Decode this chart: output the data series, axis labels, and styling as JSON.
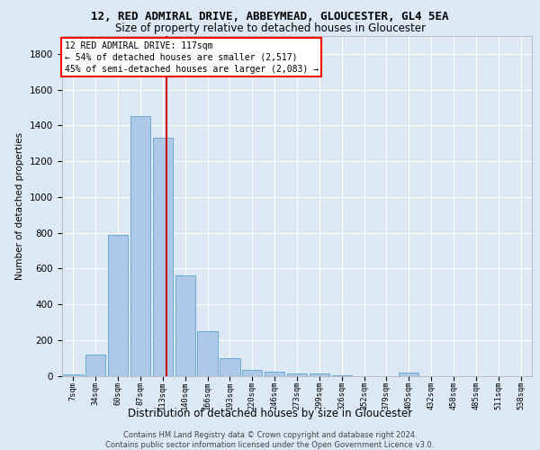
{
  "title1": "12, RED ADMIRAL DRIVE, ABBEYMEAD, GLOUCESTER, GL4 5EA",
  "title2": "Size of property relative to detached houses in Gloucester",
  "xlabel": "Distribution of detached houses by size in Gloucester",
  "ylabel": "Number of detached properties",
  "categories": [
    "7sqm",
    "34sqm",
    "60sqm",
    "87sqm",
    "113sqm",
    "140sqm",
    "166sqm",
    "193sqm",
    "220sqm",
    "246sqm",
    "273sqm",
    "299sqm",
    "326sqm",
    "352sqm",
    "379sqm",
    "405sqm",
    "432sqm",
    "458sqm",
    "485sqm",
    "511sqm",
    "538sqm"
  ],
  "values": [
    10,
    120,
    790,
    1450,
    1330,
    560,
    250,
    100,
    35,
    25,
    15,
    15,
    5,
    0,
    0,
    20,
    0,
    0,
    0,
    0,
    0
  ],
  "bar_color": "#aec8e8",
  "bar_edge_color": "#6aaad4",
  "annotation_line1": "12 RED ADMIRAL DRIVE: 117sqm",
  "annotation_line2": "← 54% of detached houses are smaller (2,517)",
  "annotation_line3": "45% of semi-detached houses are larger (2,083) →",
  "vline_color": "#cc0000",
  "vline_x": 4.15,
  "footer1": "Contains HM Land Registry data © Crown copyright and database right 2024.",
  "footer2": "Contains public sector information licensed under the Open Government Licence v3.0.",
  "ylim": [
    0,
    1900
  ],
  "yticks": [
    0,
    200,
    400,
    600,
    800,
    1000,
    1200,
    1400,
    1600,
    1800
  ],
  "background_color": "#dde8f5",
  "plot_bg_color": "#dde8f5"
}
